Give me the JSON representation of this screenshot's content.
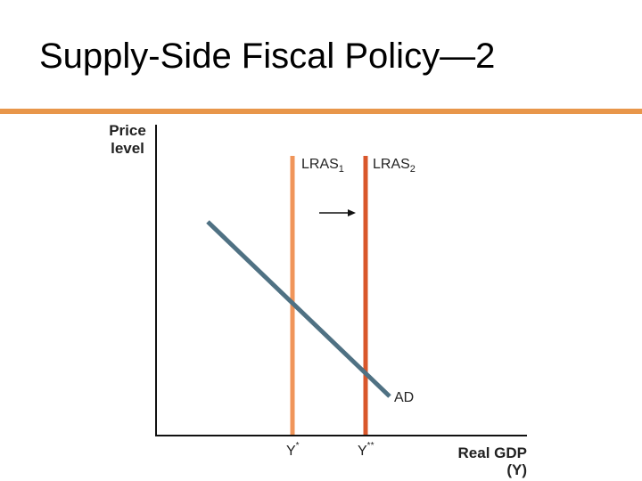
{
  "title": "Supply-Side Fiscal Policy—2",
  "y_axis_label": [
    "Price",
    "level"
  ],
  "x_axis_label": [
    "Real GDP",
    "(Y)"
  ],
  "curves": [
    {
      "label": "LRAS",
      "subscript": "1"
    },
    {
      "label": "LRAS",
      "subscript": "2"
    },
    {
      "label": "AD"
    }
  ],
  "x_marks": [
    {
      "label": "Y",
      "superscript": "*"
    },
    {
      "label": "Y",
      "superscript": "**"
    }
  ]
}
